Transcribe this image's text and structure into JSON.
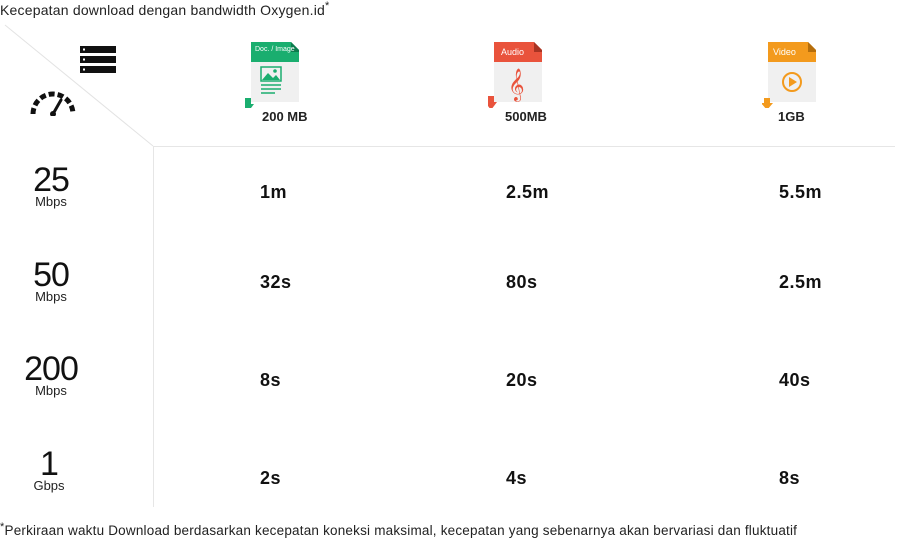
{
  "title": {
    "text": "Kecepatan download dengan bandwidth Oxygen.id",
    "mark": "*"
  },
  "header": {
    "icons": [
      "server-icon",
      "speedometer-icon"
    ],
    "columns": [
      {
        "badge": "Doc. / Image",
        "size": "200 MB",
        "color": "#1aae6f",
        "arrow_color": "#1aae6f",
        "icon": "image-document-icon"
      },
      {
        "badge": "Audio",
        "size": "500MB",
        "color": "#e9533c",
        "arrow_color": "#e9533c",
        "icon": "music-file-icon"
      },
      {
        "badge": "Video",
        "size": "1GB",
        "color": "#f39a1d",
        "arrow_color": "#f39a1d",
        "icon": "video-file-icon"
      }
    ]
  },
  "rows": [
    {
      "speed": "25",
      "unit": "Mbps",
      "times": [
        "1m",
        "2.5m",
        "5.5m"
      ]
    },
    {
      "speed": "50",
      "unit": "Mbps",
      "times": [
        "32s",
        "80s",
        "2.5m"
      ]
    },
    {
      "speed": "200",
      "unit": "Mbps",
      "times": [
        "8s",
        "20s",
        "40s"
      ]
    },
    {
      "speed": "1",
      "unit": "Gbps",
      "times": [
        "2s",
        "4s",
        "8s"
      ]
    }
  ],
  "footnote": {
    "mark": "*",
    "text": "Perkiraan waktu Download berdasarkan kecepatan koneksi maksimal, kecepatan yang sebenarnya akan bervariasi dan fluktuatif"
  }
}
